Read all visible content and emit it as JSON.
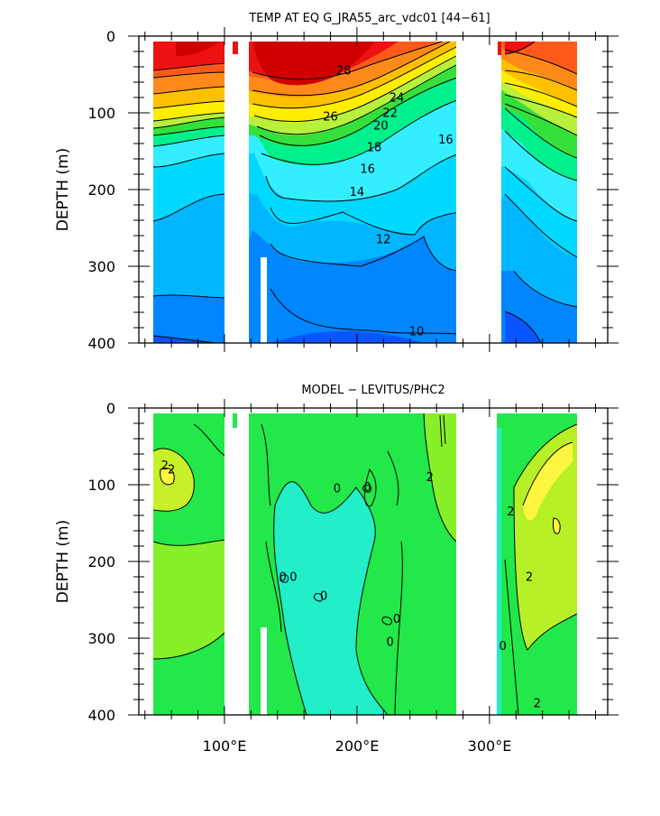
{
  "chart_data": [
    {
      "type": "heatmap",
      "title": "TEMP AT EQ G_JRA55_arc_vdc01 [44−61]",
      "xlabel": "",
      "ylabel": "DEPTH (m)",
      "ylim": [
        0,
        400
      ],
      "y_reversed": true,
      "yticks": [
        "0",
        "100",
        "200",
        "300",
        "400"
      ],
      "contour_labels": [
        {
          "text": "28",
          "lon": 190,
          "depth": 50
        },
        {
          "text": "26",
          "lon": 180,
          "depth": 110
        },
        {
          "text": "24",
          "lon": 230,
          "depth": 85
        },
        {
          "text": "22",
          "lon": 225,
          "depth": 105
        },
        {
          "text": "20",
          "lon": 218,
          "depth": 122
        },
        {
          "text": "18",
          "lon": 213,
          "depth": 150
        },
        {
          "text": "16",
          "lon": 208,
          "depth": 178
        },
        {
          "text": "14",
          "lon": 200,
          "depth": 208
        },
        {
          "text": "16",
          "lon": 267,
          "depth": 140
        },
        {
          "text": "12",
          "lon": 220,
          "depth": 270
        },
        {
          "text": "10",
          "lon": 245,
          "depth": 390
        }
      ]
    },
    {
      "type": "heatmap",
      "title": "MODEL − LEVITUS/PHC2",
      "xlabel": "",
      "ylabel": "DEPTH (m)",
      "ylim": [
        0,
        400
      ],
      "y_reversed": true,
      "yticks": [
        "0",
        "100",
        "200",
        "300",
        "400"
      ],
      "xticks": [
        "100°E",
        "200°E",
        "300°E"
      ],
      "contour_labels": [
        {
          "text": "2",
          "lon": 55,
          "depth": 80
        },
        {
          "text": "0",
          "lon": 185,
          "depth": 110
        },
        {
          "text": "2",
          "lon": 255,
          "depth": 95
        },
        {
          "text": "0",
          "lon": 208,
          "depth": 108
        },
        {
          "text": "0",
          "lon": 144,
          "depth": 225
        },
        {
          "text": "0",
          "lon": 152,
          "depth": 225
        },
        {
          "text": "0",
          "lon": 175,
          "depth": 250
        },
        {
          "text": "0",
          "lon": 230,
          "depth": 280
        },
        {
          "text": "0",
          "lon": 225,
          "depth": 310
        },
        {
          "text": "0",
          "lon": 310,
          "depth": 315
        },
        {
          "text": "2",
          "lon": 316,
          "depth": 140
        },
        {
          "text": "2",
          "lon": 330,
          "depth": 225
        },
        {
          "text": "2",
          "lon": 336,
          "depth": 390
        },
        {
          "text": "2",
          "lon": 60,
          "depth": 85
        }
      ]
    }
  ]
}
